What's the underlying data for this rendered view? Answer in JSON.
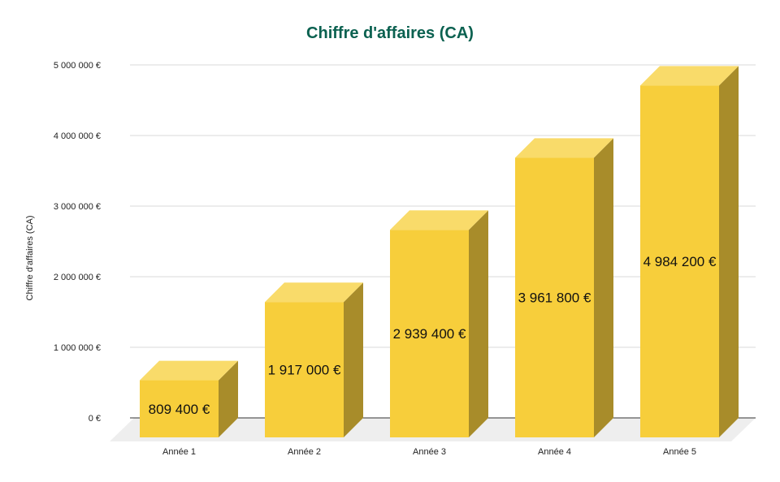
{
  "chart_data": {
    "type": "bar",
    "title": "Chiffre d'affaires (CA)",
    "xlabel": "",
    "ylabel": "Chiffre d'affaires (CA)",
    "categories": [
      "Année 1",
      "Année 2",
      "Année 3",
      "Année 4",
      "Année 5"
    ],
    "values": [
      809400,
      1917000,
      2939400,
      3961800,
      4984200
    ],
    "value_labels": [
      "809 400 €",
      "1 917 000 €",
      "2 939 400 €",
      "3 961 800 €",
      "4 984 200 €"
    ],
    "ylim": [
      0,
      5000000
    ],
    "yticks": [
      0,
      1000000,
      2000000,
      3000000,
      4000000,
      5000000
    ],
    "ytick_labels": [
      "0 €",
      "1 000 000 €",
      "2 000 000 €",
      "3 000 000 €",
      "4 000 000 €",
      "5 000 000 €"
    ],
    "grid": true,
    "legend": "none",
    "style": "3d-column",
    "colors": {
      "bar_front": "#f7ce3b",
      "bar_top": "#f9db6a",
      "bar_side": "#a88c2a",
      "floor": "#eeeeee",
      "grid": "#d9d9d9",
      "title": "#0b6150"
    }
  }
}
